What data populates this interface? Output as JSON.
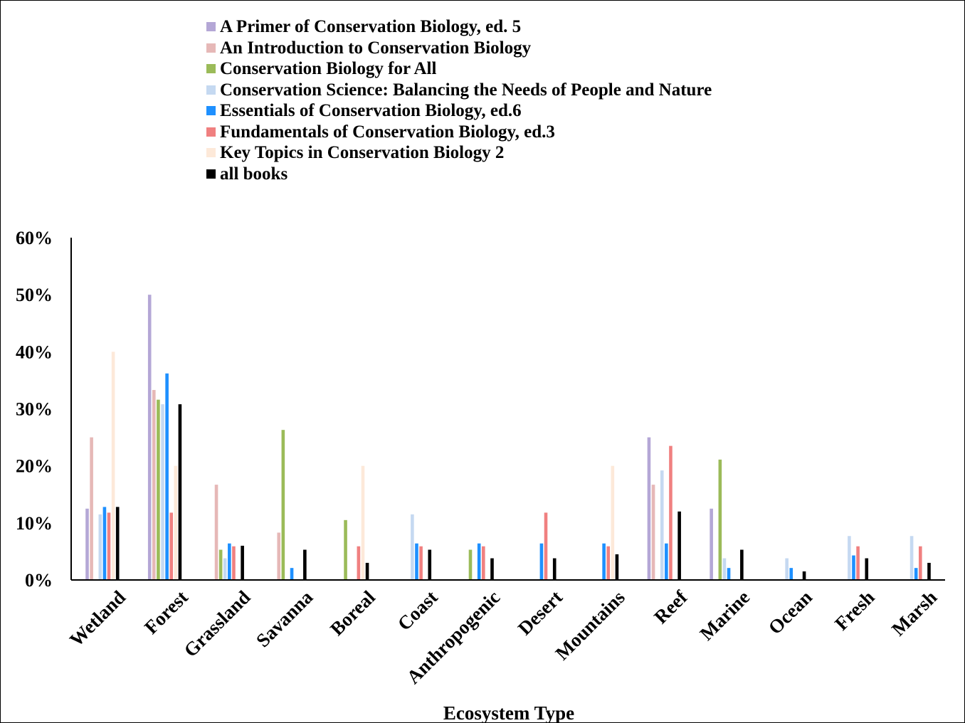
{
  "chart_data": {
    "type": "bar",
    "title": "",
    "xlabel": "Ecosystem Type",
    "ylabel": "",
    "ylim": [
      0,
      0.6
    ],
    "yticks": [
      0,
      0.1,
      0.2,
      0.3,
      0.4,
      0.5,
      0.6
    ],
    "ytick_labels": [
      "0%",
      "10%",
      "20%",
      "30%",
      "40%",
      "50%",
      "60%"
    ],
    "grid": false,
    "legend_position": "top",
    "categories": [
      "Wetland",
      "Forest",
      "Grassland",
      "Savanna",
      "Boreal",
      "Coast",
      "Anthropogenic",
      "Desert",
      "Mountains",
      "Reef",
      "Marine",
      "Ocean",
      "Fresh",
      "Marsh"
    ],
    "series": [
      {
        "name": "A Primer of Conservation Biology, ed. 5",
        "color": "#b4a7d6",
        "values": [
          0.125,
          0.5,
          0,
          0,
          0,
          0,
          0,
          0,
          0,
          0.25,
          0.125,
          0,
          0,
          0
        ]
      },
      {
        "name": "An Introduction to Conservation Biology",
        "color": "#e6b8b7",
        "values": [
          0.25,
          0.333,
          0.167,
          0.083,
          0,
          0,
          0,
          0,
          0,
          0.167,
          0,
          0,
          0,
          0
        ]
      },
      {
        "name": "Conservation Biology for All",
        "color": "#9bbb59",
        "values": [
          0,
          0.316,
          0.053,
          0.263,
          0.105,
          0,
          0.053,
          0,
          0,
          0,
          0.211,
          0,
          0,
          0
        ]
      },
      {
        "name": "Conservation Science: Balancing the Needs of People and Nature",
        "color": "#c5d9f1",
        "values": [
          0.115,
          0.308,
          0.038,
          0,
          0,
          0.115,
          0,
          0,
          0,
          0.192,
          0.038,
          0.038,
          0.077,
          0.077
        ]
      },
      {
        "name": "Essentials of Conservation Biology, ed.6",
        "color": "#1e90ff",
        "values": [
          0.128,
          0.362,
          0.064,
          0.021,
          0,
          0.064,
          0.064,
          0.064,
          0.064,
          0.064,
          0.021,
          0.021,
          0.043,
          0.021
        ]
      },
      {
        "name": "Fundamentals of Conservation Biology, ed.3",
        "color": "#f08080",
        "values": [
          0.118,
          0.118,
          0.059,
          0,
          0.059,
          0.059,
          0.059,
          0.118,
          0.059,
          0.235,
          0,
          0,
          0.059,
          0.059
        ]
      },
      {
        "name": "Key Topics in Conservation Biology 2",
        "color": "#fde9d9",
        "values": [
          0.4,
          0.2,
          0,
          0,
          0.2,
          0,
          0,
          0,
          0.2,
          0,
          0,
          0,
          0,
          0
        ]
      },
      {
        "name": "all books",
        "color": "#000000",
        "values": [
          0.128,
          0.308,
          0.06,
          0.053,
          0.03,
          0.053,
          0.038,
          0.038,
          0.045,
          0.12,
          0.053,
          0.015,
          0.038,
          0.03
        ]
      }
    ]
  }
}
